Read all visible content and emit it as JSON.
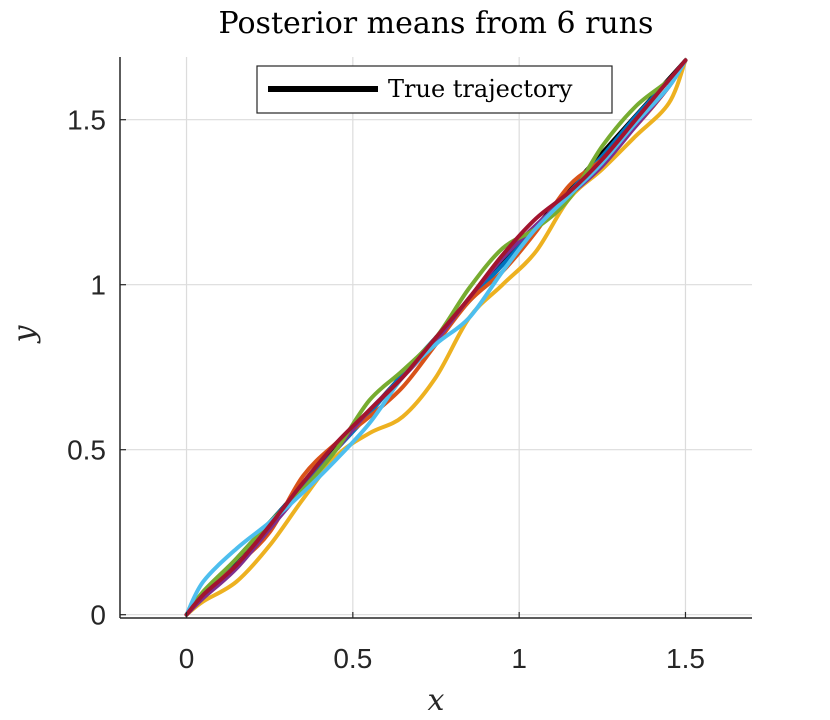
{
  "chart_data": {
    "type": "line",
    "title": "Posterior means from 6 runs",
    "xlabel": "x",
    "ylabel": "y",
    "xlim": [
      -0.2,
      1.7
    ],
    "ylim": [
      -0.01,
      1.69
    ],
    "xticks": [
      0,
      0.5,
      1,
      1.5
    ],
    "xtick_labels": [
      "0",
      "0.5",
      "1",
      "1.5"
    ],
    "yticks": [
      0,
      0.5,
      1,
      1.5
    ],
    "ytick_labels": [
      "0",
      "0.5",
      "1",
      "1.5"
    ],
    "grid": true,
    "legend_position": "top-center",
    "legend": [
      "True trajectory"
    ],
    "true_trajectory": {
      "name": "True trajectory",
      "color": "#000000",
      "x": [
        0,
        0.25,
        0.5,
        0.75,
        1.0,
        1.25,
        1.5
      ],
      "y": [
        0,
        0.28,
        0.56,
        0.84,
        1.12,
        1.4,
        1.68
      ]
    },
    "series": [
      {
        "color": "#0072BD",
        "x": [
          0,
          0.05,
          0.15,
          0.25,
          0.35,
          0.45,
          0.55,
          0.65,
          0.75,
          0.85,
          0.95,
          1.05,
          1.15,
          1.25,
          1.35,
          1.45,
          1.5
        ],
        "y": [
          0,
          0.06,
          0.17,
          0.28,
          0.39,
          0.5,
          0.61,
          0.73,
          0.84,
          0.95,
          1.06,
          1.17,
          1.28,
          1.39,
          1.51,
          1.62,
          1.68
        ]
      },
      {
        "color": "#D95319",
        "x": [
          0,
          0.05,
          0.15,
          0.25,
          0.35,
          0.45,
          0.55,
          0.65,
          0.75,
          0.85,
          0.95,
          1.05,
          1.15,
          1.25,
          1.35,
          1.45,
          1.5
        ],
        "y": [
          0,
          0.06,
          0.15,
          0.25,
          0.42,
          0.52,
          0.6,
          0.69,
          0.82,
          0.95,
          1.04,
          1.16,
          1.3,
          1.38,
          1.48,
          1.6,
          1.68
        ]
      },
      {
        "color": "#EDB120",
        "x": [
          0,
          0.05,
          0.15,
          0.25,
          0.35,
          0.45,
          0.55,
          0.65,
          0.75,
          0.85,
          0.95,
          1.05,
          1.15,
          1.25,
          1.35,
          1.45,
          1.5
        ],
        "y": [
          0,
          0.04,
          0.1,
          0.21,
          0.35,
          0.48,
          0.55,
          0.6,
          0.72,
          0.9,
          1.0,
          1.1,
          1.26,
          1.35,
          1.45,
          1.55,
          1.68
        ]
      },
      {
        "color": "#7E2F8E",
        "x": [
          0,
          0.05,
          0.15,
          0.25,
          0.35,
          0.45,
          0.55,
          0.65,
          0.75,
          0.85,
          0.95,
          1.05,
          1.15,
          1.25,
          1.35,
          1.45,
          1.5
        ],
        "y": [
          0,
          0.05,
          0.14,
          0.26,
          0.38,
          0.5,
          0.62,
          0.72,
          0.83,
          0.96,
          1.08,
          1.18,
          1.27,
          1.36,
          1.48,
          1.6,
          1.68
        ]
      },
      {
        "color": "#77AC30",
        "x": [
          0,
          0.05,
          0.15,
          0.25,
          0.35,
          0.45,
          0.55,
          0.65,
          0.75,
          0.85,
          0.95,
          1.05,
          1.15,
          1.25,
          1.35,
          1.45,
          1.5
        ],
        "y": [
          0,
          0.07,
          0.17,
          0.28,
          0.38,
          0.5,
          0.65,
          0.74,
          0.84,
          0.99,
          1.11,
          1.17,
          1.26,
          1.42,
          1.54,
          1.62,
          1.68
        ]
      },
      {
        "color": "#4DBEEE",
        "x": [
          0,
          0.05,
          0.15,
          0.25,
          0.35,
          0.45,
          0.55,
          0.65,
          0.75,
          0.85,
          0.95,
          1.05,
          1.15,
          1.25,
          1.35,
          1.45,
          1.5
        ],
        "y": [
          0,
          0.1,
          0.2,
          0.28,
          0.37,
          0.47,
          0.58,
          0.72,
          0.82,
          0.9,
          1.04,
          1.17,
          1.27,
          1.37,
          1.49,
          1.6,
          1.68
        ]
      },
      {
        "color": "#A2142F",
        "x": [
          0,
          0.05,
          0.15,
          0.25,
          0.35,
          0.45,
          0.55,
          0.65,
          0.75,
          0.85,
          0.95,
          1.05,
          1.15,
          1.25,
          1.35,
          1.45,
          1.5
        ],
        "y": [
          0,
          0.06,
          0.15,
          0.27,
          0.4,
          0.52,
          0.62,
          0.72,
          0.84,
          0.96,
          1.09,
          1.2,
          1.28,
          1.38,
          1.5,
          1.62,
          1.68
        ]
      }
    ]
  }
}
